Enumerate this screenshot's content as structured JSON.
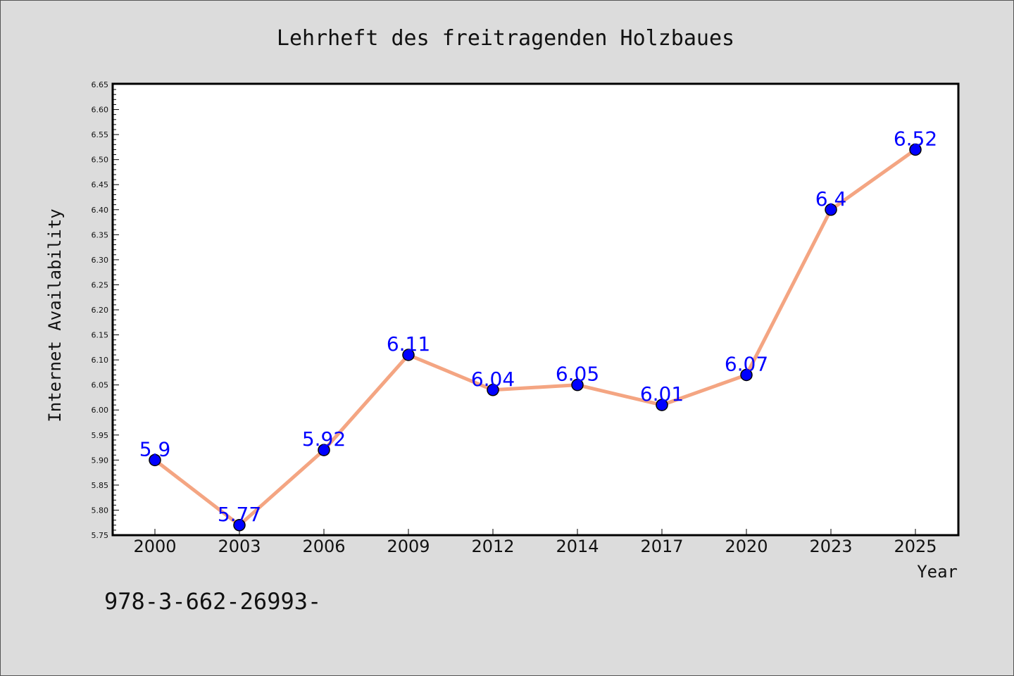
{
  "chart_data": {
    "type": "line",
    "title": "Lehrheft des freitragenden Holzbaues",
    "xlabel": "Year",
    "ylabel": "Internet Availability",
    "categories": [
      "2000",
      "2003",
      "2006",
      "2009",
      "2012",
      "2014",
      "2017",
      "2020",
      "2023",
      "2025"
    ],
    "series": [
      {
        "values": [
          5.9,
          5.77,
          5.92,
          6.11,
          6.04,
          6.05,
          6.01,
          6.07,
          6.4,
          6.52
        ],
        "data_labels": [
          "5.9",
          "5.77",
          "5.92",
          "6.11",
          "6.04",
          "6.05",
          "6.01",
          "6.07",
          "6.4",
          "6.52"
        ]
      }
    ],
    "ylim": [
      5.75,
      6.65
    ],
    "y_ticks": [
      "5.75",
      "5.80",
      "5.85",
      "5.90",
      "5.95",
      "6.00",
      "6.05",
      "6.10",
      "6.15",
      "6.20",
      "6.25",
      "6.30",
      "6.35",
      "6.40",
      "6.45",
      "6.50",
      "6.55",
      "6.60",
      "6.65"
    ],
    "grid": false,
    "legend": "none",
    "colors": {
      "line": "#f4a582",
      "marker": "#0000ff",
      "label": "#0000ff",
      "background": "#dcdcdc",
      "plot_background": "#ffffff"
    }
  },
  "footnote": "978-3-662-26993-"
}
